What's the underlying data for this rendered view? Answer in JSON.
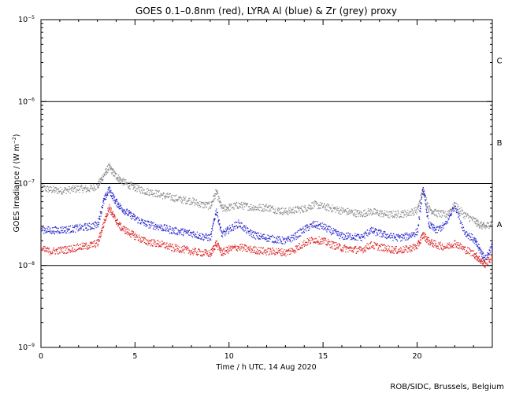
{
  "chart_data": {
    "type": "scatter",
    "title": "GOES 0.1–0.8nm (red), LYRA Al (blue) & Zr (grey) proxy",
    "xlabel": "Time / h UTC, 14 Aug 2020",
    "ylabel_main": "GOES Irradiance / (W m",
    "ylabel_sup": "−2",
    "ylabel_close": ")",
    "xlim": [
      0,
      24
    ],
    "ylim": [
      1e-09,
      1e-05
    ],
    "yscale": "log",
    "x_ticks": [
      0,
      5,
      10,
      15,
      20
    ],
    "x_tick_labels": [
      "0",
      "5",
      "10",
      "15",
      "20"
    ],
    "y_ticks": [
      {
        "value": 1e-05,
        "base": "10",
        "exp": "−5"
      },
      {
        "value": 1e-06,
        "base": "10",
        "exp": "−6"
      },
      {
        "value": 1e-07,
        "base": "10",
        "exp": "−7"
      },
      {
        "value": 1e-08,
        "base": "10",
        "exp": "−8"
      },
      {
        "value": 1e-09,
        "base": "10",
        "exp": "−9"
      }
    ],
    "class_thresholds": [
      1e-06,
      1e-07,
      1e-08
    ],
    "class_labels": [
      {
        "label": "C",
        "value": 3.2e-06
      },
      {
        "label": "B",
        "value": 3.2e-07
      },
      {
        "label": "A",
        "value": 3.2e-08
      }
    ],
    "series": [
      {
        "color": "#888888",
        "x": [
          0,
          0.5,
          1,
          1.5,
          2,
          2.5,
          3,
          3.3,
          3.6,
          3.9,
          4.2,
          4.6,
          5,
          5.5,
          6,
          6.5,
          7,
          7.5,
          8,
          8.5,
          9,
          9.3,
          9.6,
          10,
          10.5,
          11,
          11.5,
          12,
          12.5,
          13,
          13.5,
          14,
          14.5,
          15,
          15.5,
          16,
          16.5,
          17,
          17.5,
          18,
          18.5,
          19,
          19.5,
          20,
          20.3,
          20.6,
          21,
          21.5,
          22,
          22.5,
          23,
          23.3,
          23.6,
          24
        ],
        "values": [
          9e-08,
          8.5e-08,
          8.3e-08,
          8.5e-08,
          8.8e-08,
          8.6e-08,
          9.5e-08,
          1.25e-07,
          1.62e-07,
          1.3e-07,
          1.12e-07,
          9.8e-08,
          9e-08,
          8.2e-08,
          7.8e-08,
          7.2e-08,
          6.8e-08,
          6.4e-08,
          6.2e-08,
          5.6e-08,
          5.4e-08,
          8e-08,
          5e-08,
          5.2e-08,
          5.5e-08,
          5.3e-08,
          5.1e-08,
          5.2e-08,
          4.8e-08,
          4.6e-08,
          4.8e-08,
          5e-08,
          5.6e-08,
          5.3e-08,
          5e-08,
          4.7e-08,
          4.5e-08,
          4.3e-08,
          4.6e-08,
          4.4e-08,
          4.2e-08,
          4.3e-08,
          4.4e-08,
          4.8e-08,
          8.5e-08,
          5e-08,
          4.4e-08,
          4.2e-08,
          5.5e-08,
          4.2e-08,
          3.6e-08,
          3.2e-08,
          3e-08,
          3.4e-08
        ]
      },
      {
        "color": "#2020cc",
        "x": [
          0,
          0.5,
          1,
          1.5,
          2,
          2.5,
          3,
          3.3,
          3.6,
          3.9,
          4.2,
          4.6,
          5,
          5.5,
          6,
          6.5,
          7,
          7.5,
          8,
          8.5,
          9,
          9.3,
          9.6,
          10,
          10.5,
          11,
          11.5,
          12,
          12.5,
          13,
          13.5,
          14,
          14.5,
          15,
          15.5,
          16,
          16.5,
          17,
          17.5,
          18,
          18.5,
          19,
          19.5,
          20,
          20.3,
          20.6,
          21,
          21.5,
          22,
          22.5,
          23,
          23.3,
          23.6,
          24
        ],
        "values": [
          2.8e-08,
          2.7e-08,
          2.75e-08,
          2.8e-08,
          2.9e-08,
          3e-08,
          3.2e-08,
          6e-08,
          8.6e-08,
          6.4e-08,
          5.2e-08,
          4.4e-08,
          3.8e-08,
          3.3e-08,
          3.1e-08,
          2.9e-08,
          2.7e-08,
          2.6e-08,
          2.5e-08,
          2.3e-08,
          2.2e-08,
          4.8e-08,
          2.4e-08,
          2.8e-08,
          3.3e-08,
          2.6e-08,
          2.3e-08,
          2.2e-08,
          2.1e-08,
          2e-08,
          2.3e-08,
          2.8e-08,
          3.2e-08,
          3e-08,
          2.6e-08,
          2.3e-08,
          2.3e-08,
          2.2e-08,
          2.7e-08,
          2.5e-08,
          2.3e-08,
          2.2e-08,
          2.3e-08,
          2.6e-08,
          9e-08,
          3.2e-08,
          2.7e-08,
          3.2e-08,
          5.5e-08,
          2.6e-08,
          2.1e-08,
          1.6e-08,
          1.2e-08,
          1.8e-08
        ]
      },
      {
        "color": "#dd2020",
        "x": [
          0,
          0.5,
          1,
          1.5,
          2,
          2.5,
          3,
          3.3,
          3.6,
          3.9,
          4.2,
          4.6,
          5,
          5.5,
          6,
          6.5,
          7,
          7.5,
          8,
          8.5,
          9,
          9.3,
          9.6,
          10,
          10.5,
          11,
          11.5,
          12,
          12.5,
          13,
          13.5,
          14,
          14.5,
          15,
          15.5,
          16,
          16.5,
          17,
          17.5,
          18,
          18.5,
          19,
          19.5,
          20,
          20.3,
          20.6,
          21,
          21.5,
          22,
          22.5,
          23,
          23.3,
          23.6,
          24
        ],
        "values": [
          1.6e-08,
          1.5e-08,
          1.55e-08,
          1.6e-08,
          1.7e-08,
          1.75e-08,
          1.9e-08,
          3.2e-08,
          5.2e-08,
          3.8e-08,
          3e-08,
          2.6e-08,
          2.3e-08,
          2e-08,
          1.9e-08,
          1.8e-08,
          1.65e-08,
          1.6e-08,
          1.5e-08,
          1.45e-08,
          1.4e-08,
          1.9e-08,
          1.45e-08,
          1.6e-08,
          1.7e-08,
          1.6e-08,
          1.55e-08,
          1.5e-08,
          1.5e-08,
          1.45e-08,
          1.6e-08,
          1.9e-08,
          2.1e-08,
          2e-08,
          1.8e-08,
          1.65e-08,
          1.6e-08,
          1.55e-08,
          1.8e-08,
          1.7e-08,
          1.6e-08,
          1.55e-08,
          1.6e-08,
          1.75e-08,
          2.4e-08,
          2e-08,
          1.8e-08,
          1.7e-08,
          1.9e-08,
          1.6e-08,
          1.4e-08,
          1.2e-08,
          1.05e-08,
          1.3e-08
        ]
      }
    ]
  },
  "credit": "ROB/SIDC, Brussels, Belgium"
}
